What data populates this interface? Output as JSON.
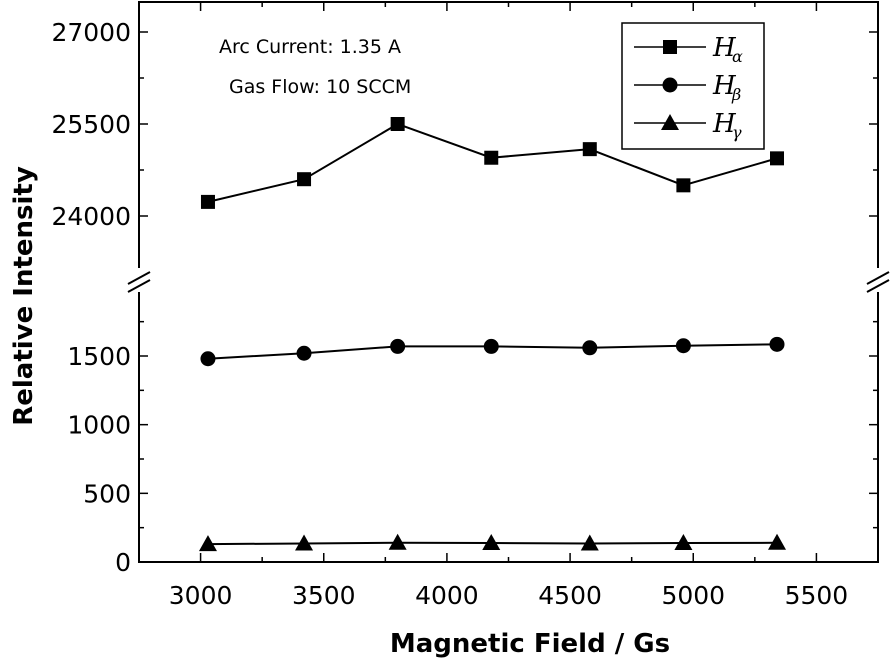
{
  "chart_data": {
    "type": "line",
    "xlabel": "Magnetic Field / Gs",
    "ylabel": "Relative Intensity",
    "xlim": [
      2750,
      5750
    ],
    "x_ticks": [
      3000,
      3500,
      4000,
      4500,
      5000,
      5500
    ],
    "y_axis_break": true,
    "ylim_lower": [
      0,
      1900
    ],
    "ylim_upper": [
      23000,
      27500
    ],
    "y_ticks_lower": [
      0,
      500,
      1000,
      1500
    ],
    "y_ticks_upper": [
      24000,
      25500,
      27000
    ],
    "grid": false,
    "legend_position": "top-right",
    "annotations": [
      "Arc Current: 1.35 A",
      "Gas Flow: 10 SCCM"
    ],
    "x": [
      3030,
      3420,
      3800,
      4180,
      4580,
      4960,
      5340
    ],
    "series": [
      {
        "name": "H",
        "subscript": "α",
        "marker": "square",
        "segment": "upper",
        "values": [
          24230,
          24600,
          25500,
          24950,
          25090,
          24500,
          24940
        ]
      },
      {
        "name": "H",
        "subscript": "β",
        "marker": "circle",
        "segment": "lower",
        "values": [
          1480,
          1520,
          1570,
          1570,
          1560,
          1575,
          1585
        ]
      },
      {
        "name": "H",
        "subscript": "γ",
        "marker": "triangle",
        "segment": "lower",
        "values": [
          130,
          135,
          140,
          138,
          135,
          138,
          140
        ]
      }
    ]
  }
}
